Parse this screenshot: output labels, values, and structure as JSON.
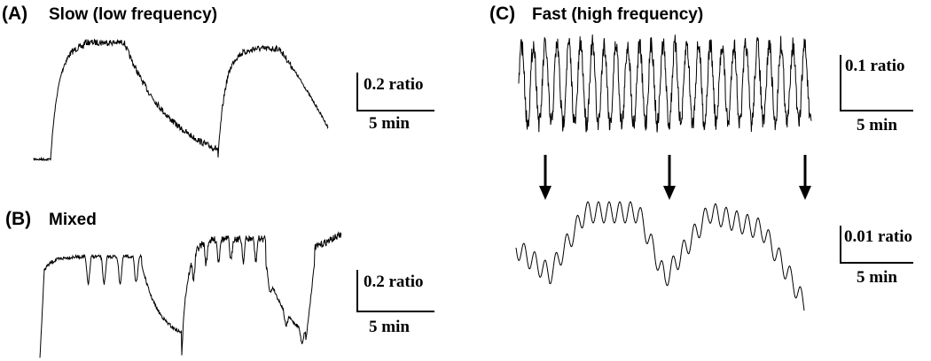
{
  "panels": [
    {
      "label": "(A)",
      "title": "Slow (low frequency)",
      "scale_y": "0.2 ratio",
      "scale_x": "5 min"
    },
    {
      "label": "(B)",
      "title": "Mixed",
      "scale_y": "0.2 ratio",
      "scale_x": "5 min"
    },
    {
      "label": "(C)",
      "title": "Fast (high frequency)",
      "scale_y": "0.1 ratio",
      "scale_x": "5 min",
      "zoom_scale_y": "0.01 ratio",
      "zoom_scale_x": "5 min"
    }
  ]
}
